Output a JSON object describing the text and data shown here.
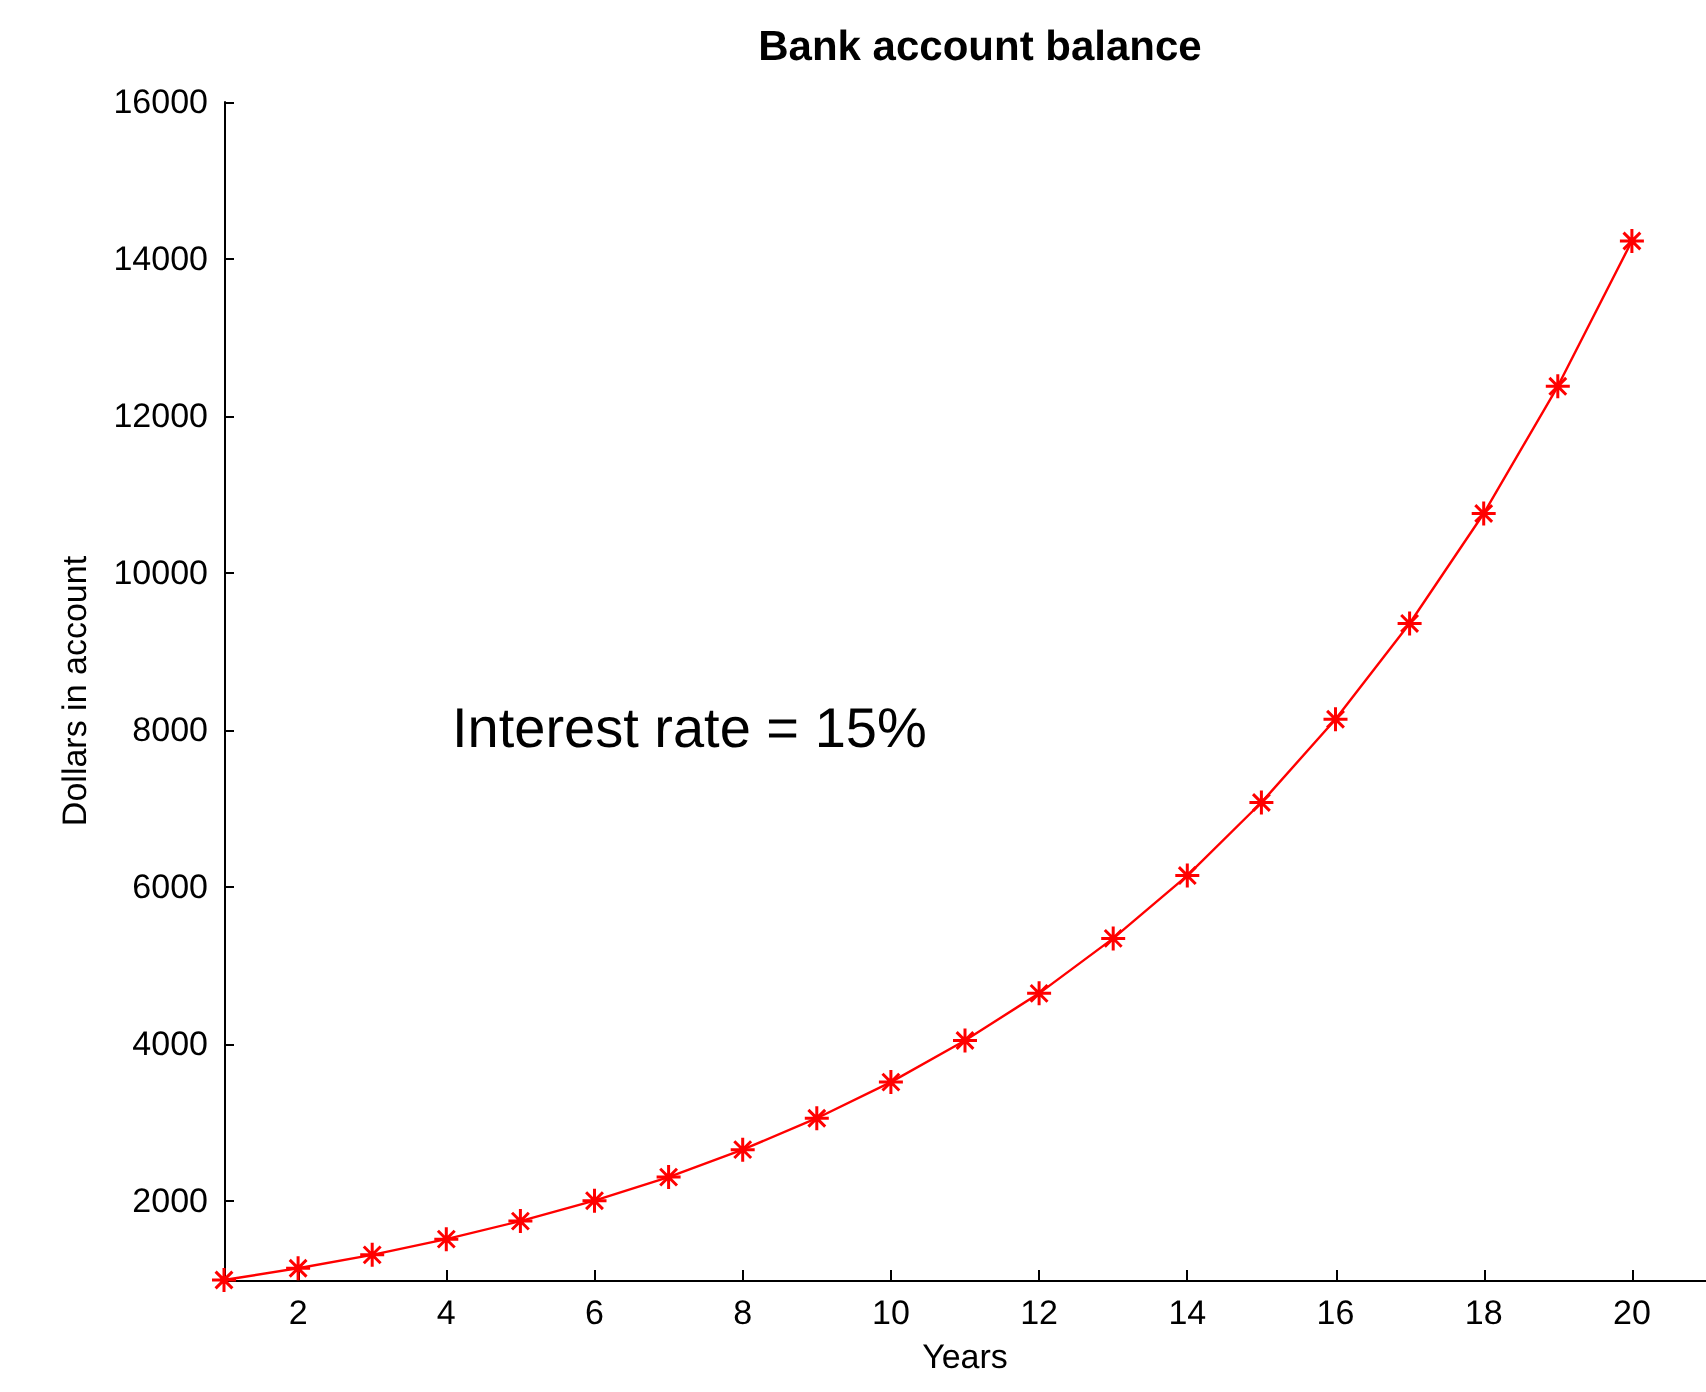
{
  "chart_data": {
    "type": "line",
    "title": "Bank account balance",
    "xlabel": "Years",
    "ylabel": "Dollars in account",
    "annotations": [
      "Interest rate = 15%"
    ],
    "x": [
      1,
      2,
      3,
      4,
      5,
      6,
      7,
      8,
      9,
      10,
      11,
      12,
      13,
      14,
      15,
      16,
      17,
      18,
      19,
      20
    ],
    "series": [
      {
        "color": "#ff0000",
        "values": [
          1000,
          1150,
          1320,
          1520,
          1750,
          2010,
          2310,
          2660,
          3060,
          3520,
          4050,
          4650,
          5350,
          6150,
          7080,
          8140,
          9360,
          10760,
          12380,
          14230
        ]
      }
    ],
    "xlim": [
      1,
      21
    ],
    "xticks": [
      2,
      4,
      6,
      8,
      10,
      12,
      14,
      16,
      18,
      20
    ],
    "ylim": [
      1000,
      16000
    ],
    "yticks": [
      2000,
      4000,
      6000,
      8000,
      10000,
      12000,
      14000,
      16000
    ],
    "grid": false,
    "marker": "cross",
    "line_style": "solid"
  }
}
